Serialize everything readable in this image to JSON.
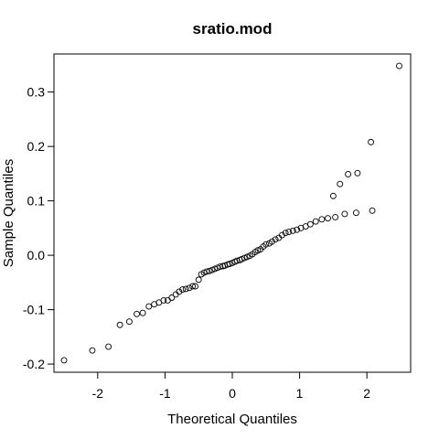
{
  "chart_data": {
    "type": "scatter",
    "title": "sratio.mod",
    "xlabel": "Theoretical Quantiles",
    "ylabel": "Sample Quantiles",
    "xlim": [
      -2.65,
      2.65
    ],
    "ylim": [
      -0.215,
      0.37
    ],
    "x_ticks": [
      -2,
      -1,
      0,
      1,
      2
    ],
    "x_tick_labels": [
      "-2",
      "-1",
      "0",
      "1",
      "2"
    ],
    "y_ticks": [
      -0.2,
      -0.1,
      0.0,
      0.1,
      0.2,
      0.3
    ],
    "y_tick_labels": [
      "-0.2",
      "-0.1",
      "0.0",
      "0.1",
      "0.2",
      "0.3"
    ],
    "grid": false,
    "legend": "none",
    "point_color": "#000000",
    "points": [
      [
        -2.5,
        -0.193
      ],
      [
        -2.08,
        -0.175
      ],
      [
        -1.84,
        -0.168
      ],
      [
        -1.67,
        -0.128
      ],
      [
        -1.53,
        -0.122
      ],
      [
        -1.42,
        -0.108
      ],
      [
        -1.33,
        -0.106
      ],
      [
        -1.24,
        -0.094
      ],
      [
        -1.16,
        -0.09
      ],
      [
        -1.09,
        -0.087
      ],
      [
        -1.02,
        -0.083
      ],
      [
        -0.96,
        -0.083
      ],
      [
        -0.9,
        -0.078
      ],
      [
        -0.84,
        -0.072
      ],
      [
        -0.79,
        -0.067
      ],
      [
        -0.74,
        -0.063
      ],
      [
        -0.69,
        -0.062
      ],
      [
        -0.64,
        -0.06
      ],
      [
        -0.59,
        -0.057
      ],
      [
        -0.55,
        -0.057
      ],
      [
        -0.5,
        -0.045
      ],
      [
        -0.46,
        -0.035
      ],
      [
        -0.42,
        -0.032
      ],
      [
        -0.38,
        -0.03
      ],
      [
        -0.34,
        -0.029
      ],
      [
        -0.3,
        -0.027
      ],
      [
        -0.26,
        -0.025
      ],
      [
        -0.22,
        -0.023
      ],
      [
        -0.18,
        -0.021
      ],
      [
        -0.14,
        -0.02
      ],
      [
        -0.11,
        -0.019
      ],
      [
        -0.07,
        -0.017
      ],
      [
        -0.04,
        -0.016
      ],
      [
        0.0,
        -0.014
      ],
      [
        0.04,
        -0.012
      ],
      [
        0.07,
        -0.01
      ],
      [
        0.11,
        -0.009
      ],
      [
        0.14,
        -0.007
      ],
      [
        0.18,
        -0.005
      ],
      [
        0.22,
        -0.003
      ],
      [
        0.26,
        -0.001
      ],
      [
        0.3,
        0.002
      ],
      [
        0.34,
        0.006
      ],
      [
        0.38,
        0.009
      ],
      [
        0.42,
        0.011
      ],
      [
        0.46,
        0.016
      ],
      [
        0.5,
        0.02
      ],
      [
        0.55,
        0.022
      ],
      [
        0.59,
        0.025
      ],
      [
        0.64,
        0.029
      ],
      [
        0.69,
        0.032
      ],
      [
        0.74,
        0.037
      ],
      [
        0.79,
        0.041
      ],
      [
        0.84,
        0.043
      ],
      [
        0.9,
        0.045
      ],
      [
        0.96,
        0.047
      ],
      [
        1.02,
        0.05
      ],
      [
        1.09,
        0.053
      ],
      [
        1.16,
        0.057
      ],
      [
        1.24,
        0.062
      ],
      [
        1.33,
        0.066
      ],
      [
        1.42,
        0.068
      ],
      [
        1.53,
        0.07
      ],
      [
        1.67,
        0.076
      ],
      [
        1.84,
        0.078
      ],
      [
        2.08,
        0.082
      ],
      [
        1.5,
        0.109
      ],
      [
        1.6,
        0.131
      ],
      [
        1.72,
        0.149
      ],
      [
        1.86,
        0.151
      ],
      [
        2.06,
        0.208
      ],
      [
        2.48,
        0.348
      ]
    ]
  }
}
